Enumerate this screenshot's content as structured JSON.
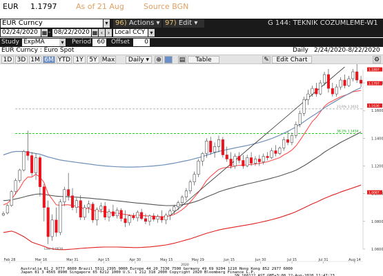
{
  "header": {
    "ticker": "EUR",
    "last_price": "1.1797",
    "as_of": "As of 21 Aug",
    "source": "Source BGN"
  },
  "toolbar": {
    "security": "EUR Curncy",
    "actions_num": "96)",
    "actions_label": "Actions",
    "edit_num": "97)",
    "edit_label": "Edit",
    "function_title": "G 144: TEKNIK COZUMLEME-W1"
  },
  "date_range": {
    "start": "02/24/2020",
    "end": "08/22/2020",
    "currency": "Local CCY"
  },
  "study": {
    "label": "Study",
    "name": "ExpMA",
    "period_label": "Period",
    "period": "60",
    "offset_label": "Offset",
    "offset": "0"
  },
  "subheader": {
    "description": "EUR Curncy : Euro Spot",
    "frequency": "Daily",
    "range": "2/24/2020-8/22/2020"
  },
  "periods": [
    "1D",
    "3D",
    "1M",
    "6M",
    "YTD",
    "1Y",
    "5Y",
    "Max"
  ],
  "active_period": "6M",
  "frequency_select": "Daily",
  "buttons": {
    "table": "Table",
    "edit_chart": "Edit Chart"
  },
  "footer": {
    "line1": "Australia 61 2 9777 8600 Brazil 5511 2395 9000 Europe 44 20 7330 7500 Germany 49 69 9204 1210 Hong Kong 852 2977 6000",
    "line2": "Japan 81 3 4565 8900        Singapore 65 6212 1000       U.S. 1 212 318 2000          Copyright 2020 Bloomberg Finance L.P.",
    "line3": "SN 168122 AST  GMT+3:00 22-Aug-2020 11:47:23"
  },
  "colors": {
    "up_candle": "#ffffff",
    "down_candle": "#e8141e",
    "ema_short": "#ff4d4d",
    "ema_mid": "#555555",
    "ema_long": "#6f8fb8",
    "bb_lower": "#e22020",
    "green_line": "#00cc00",
    "gray_line": "#aaaaaa",
    "last_price_badge": "#e22020"
  },
  "chart_data": {
    "type": "candlestick",
    "title": "",
    "ylim": [
      1.06,
      1.1895
    ],
    "y_ticks": [
      "1.1800",
      "1.1600",
      "1.1400",
      "1.1200",
      "1.1000",
      "1.0800",
      "1.0600"
    ],
    "x_ticks": [
      "Feb 28",
      "Mar 16",
      "Mar 31",
      "Apr 15",
      "Apr 30",
      "May 15",
      "May 29",
      "Jun 15",
      "Jun 30",
      "Jul 15",
      "Jul 31",
      "Aug 14"
    ],
    "x_year": "2020",
    "last_value_label": "1.1797",
    "level_labels": [
      {
        "text": "1.1897",
        "value": 1.1897
      },
      {
        "text": "1.1636",
        "value": 1.1636
      },
      {
        "text": "1.0087",
        "value": 1.0087
      }
    ],
    "annotations": {
      "high_label": "Hi: 1.1966",
      "low_label": "Low: 1.0636",
      "fib_label_1": "23.6% 1.1612",
      "fib_label_2": "38.2% 1.1434"
    },
    "hlines": [
      {
        "name": "fib_1",
        "value": 1.1612
      },
      {
        "name": "fib_2",
        "value": 1.1434
      }
    ],
    "candles": [
      {
        "o": 1.0845,
        "h": 1.0872,
        "l": 1.0838,
        "c": 1.0857
      },
      {
        "o": 1.086,
        "h": 1.0925,
        "l": 1.085,
        "c": 1.0915
      },
      {
        "o": 1.0915,
        "h": 1.1025,
        "l": 1.0905,
        "c": 1.1015
      },
      {
        "o": 1.1015,
        "h": 1.111,
        "l": 1.0995,
        "c": 1.1095
      },
      {
        "o": 1.1095,
        "h": 1.118,
        "l": 1.108,
        "c": 1.117
      },
      {
        "o": 1.117,
        "h": 1.1315,
        "l": 1.116,
        "c": 1.1305
      },
      {
        "o": 1.1305,
        "h": 1.1455,
        "l": 1.124,
        "c": 1.1275
      },
      {
        "o": 1.1275,
        "h": 1.13,
        "l": 1.1125,
        "c": 1.115
      },
      {
        "o": 1.115,
        "h": 1.129,
        "l": 1.11,
        "c": 1.126
      },
      {
        "o": 1.126,
        "h": 1.1275,
        "l": 1.098,
        "c": 1.105
      },
      {
        "o": 1.105,
        "h": 1.107,
        "l": 1.08,
        "c": 1.09
      },
      {
        "o": 1.09,
        "h": 1.095,
        "l": 1.0636,
        "c": 1.069
      },
      {
        "o": 1.069,
        "h": 1.085,
        "l": 1.066,
        "c": 1.081
      },
      {
        "o": 1.081,
        "h": 1.09,
        "l": 1.069,
        "c": 1.072
      },
      {
        "o": 1.072,
        "h": 1.096,
        "l": 1.07,
        "c": 1.094
      },
      {
        "o": 1.094,
        "h": 1.105,
        "l": 1.091,
        "c": 1.103
      },
      {
        "o": 1.103,
        "h": 1.115,
        "l": 1.095,
        "c": 1.0985
      },
      {
        "o": 1.0985,
        "h": 1.104,
        "l": 1.088,
        "c": 1.09
      },
      {
        "o": 1.09,
        "h": 1.097,
        "l": 1.086,
        "c": 1.095
      },
      {
        "o": 1.095,
        "h": 1.099,
        "l": 1.081,
        "c": 1.083
      },
      {
        "o": 1.083,
        "h": 1.092,
        "l": 1.081,
        "c": 1.09
      },
      {
        "o": 1.09,
        "h": 1.095,
        "l": 1.086,
        "c": 1.0925
      },
      {
        "o": 1.0925,
        "h": 1.094,
        "l": 1.079,
        "c": 1.081
      },
      {
        "o": 1.081,
        "h": 1.09,
        "l": 1.077,
        "c": 1.0885
      },
      {
        "o": 1.0885,
        "h": 1.0935,
        "l": 1.086,
        "c": 1.091
      },
      {
        "o": 1.091,
        "h": 1.094,
        "l": 1.081,
        "c": 1.083
      },
      {
        "o": 1.083,
        "h": 1.089,
        "l": 1.08,
        "c": 1.087
      },
      {
        "o": 1.087,
        "h": 1.092,
        "l": 1.083,
        "c": 1.084
      },
      {
        "o": 1.084,
        "h": 1.09,
        "l": 1.082,
        "c": 1.088
      },
      {
        "o": 1.088,
        "h": 1.0895,
        "l": 1.08,
        "c": 1.082
      },
      {
        "o": 1.082,
        "h": 1.088,
        "l": 1.076,
        "c": 1.079
      },
      {
        "o": 1.079,
        "h": 1.085,
        "l": 1.077,
        "c": 1.084
      },
      {
        "o": 1.084,
        "h": 1.086,
        "l": 1.081,
        "c": 1.0825
      },
      {
        "o": 1.0825,
        "h": 1.088,
        "l": 1.08,
        "c": 1.0865
      },
      {
        "o": 1.0865,
        "h": 1.089,
        "l": 1.081,
        "c": 1.082
      },
      {
        "o": 1.082,
        "h": 1.0855,
        "l": 1.078,
        "c": 1.08
      },
      {
        "o": 1.08,
        "h": 1.085,
        "l": 1.077,
        "c": 1.084
      },
      {
        "o": 1.084,
        "h": 1.086,
        "l": 1.08,
        "c": 1.0815
      },
      {
        "o": 1.0815,
        "h": 1.085,
        "l": 1.079,
        "c": 1.0835
      },
      {
        "o": 1.0835,
        "h": 1.088,
        "l": 1.079,
        "c": 1.081
      },
      {
        "o": 1.081,
        "h": 1.086,
        "l": 1.078,
        "c": 1.0845
      },
      {
        "o": 1.0845,
        "h": 1.089,
        "l": 1.081,
        "c": 1.0875
      },
      {
        "o": 1.0875,
        "h": 1.092,
        "l": 1.085,
        "c": 1.0905
      },
      {
        "o": 1.0905,
        "h": 1.095,
        "l": 1.088,
        "c": 1.0935
      },
      {
        "o": 1.0935,
        "h": 1.099,
        "l": 1.091,
        "c": 1.0975
      },
      {
        "o": 1.0975,
        "h": 1.104,
        "l": 1.095,
        "c": 1.102
      },
      {
        "o": 1.102,
        "h": 1.11,
        "l": 1.1,
        "c": 1.1085
      },
      {
        "o": 1.1085,
        "h": 1.116,
        "l": 1.106,
        "c": 1.114
      },
      {
        "o": 1.114,
        "h": 1.125,
        "l": 1.112,
        "c": 1.1235
      },
      {
        "o": 1.1235,
        "h": 1.13,
        "l": 1.12,
        "c": 1.129
      },
      {
        "o": 1.129,
        "h": 1.14,
        "l": 1.126,
        "c": 1.138
      },
      {
        "o": 1.138,
        "h": 1.141,
        "l": 1.128,
        "c": 1.13
      },
      {
        "o": 1.13,
        "h": 1.137,
        "l": 1.126,
        "c": 1.134
      },
      {
        "o": 1.134,
        "h": 1.142,
        "l": 1.13,
        "c": 1.139
      },
      {
        "o": 1.139,
        "h": 1.141,
        "l": 1.126,
        "c": 1.128
      },
      {
        "o": 1.128,
        "h": 1.134,
        "l": 1.123,
        "c": 1.125
      },
      {
        "o": 1.125,
        "h": 1.13,
        "l": 1.118,
        "c": 1.12
      },
      {
        "o": 1.12,
        "h": 1.129,
        "l": 1.118,
        "c": 1.127
      },
      {
        "o": 1.127,
        "h": 1.13,
        "l": 1.122,
        "c": 1.124
      },
      {
        "o": 1.124,
        "h": 1.128,
        "l": 1.118,
        "c": 1.12
      },
      {
        "o": 1.12,
        "h": 1.128,
        "l": 1.119,
        "c": 1.126
      },
      {
        "o": 1.126,
        "h": 1.13,
        "l": 1.12,
        "c": 1.122
      },
      {
        "o": 1.122,
        "h": 1.127,
        "l": 1.12,
        "c": 1.125
      },
      {
        "o": 1.125,
        "h": 1.128,
        "l": 1.12,
        "c": 1.123
      },
      {
        "o": 1.123,
        "h": 1.129,
        "l": 1.121,
        "c": 1.127
      },
      {
        "o": 1.127,
        "h": 1.13,
        "l": 1.124,
        "c": 1.126
      },
      {
        "o": 1.126,
        "h": 1.133,
        "l": 1.125,
        "c": 1.131
      },
      {
        "o": 1.131,
        "h": 1.135,
        "l": 1.127,
        "c": 1.129
      },
      {
        "o": 1.129,
        "h": 1.134,
        "l": 1.128,
        "c": 1.133
      },
      {
        "o": 1.133,
        "h": 1.141,
        "l": 1.131,
        "c": 1.139
      },
      {
        "o": 1.139,
        "h": 1.145,
        "l": 1.135,
        "c": 1.137
      },
      {
        "o": 1.137,
        "h": 1.144,
        "l": 1.135,
        "c": 1.142
      },
      {
        "o": 1.142,
        "h": 1.152,
        "l": 1.14,
        "c": 1.15
      },
      {
        "o": 1.15,
        "h": 1.16,
        "l": 1.148,
        "c": 1.158
      },
      {
        "o": 1.158,
        "h": 1.17,
        "l": 1.156,
        "c": 1.168
      },
      {
        "o": 1.168,
        "h": 1.175,
        "l": 1.164,
        "c": 1.172
      },
      {
        "o": 1.172,
        "h": 1.178,
        "l": 1.17,
        "c": 1.176
      },
      {
        "o": 1.176,
        "h": 1.18,
        "l": 1.17,
        "c": 1.172
      },
      {
        "o": 1.172,
        "h": 1.182,
        "l": 1.171,
        "c": 1.18
      },
      {
        "o": 1.18,
        "h": 1.188,
        "l": 1.178,
        "c": 1.186
      },
      {
        "o": 1.186,
        "h": 1.19,
        "l": 1.173,
        "c": 1.176
      },
      {
        "o": 1.176,
        "h": 1.18,
        "l": 1.17,
        "c": 1.172
      },
      {
        "o": 1.172,
        "h": 1.179,
        "l": 1.17,
        "c": 1.177
      },
      {
        "o": 1.177,
        "h": 1.184,
        "l": 1.175,
        "c": 1.182
      },
      {
        "o": 1.182,
        "h": 1.186,
        "l": 1.176,
        "c": 1.178
      },
      {
        "o": 1.178,
        "h": 1.185,
        "l": 1.177,
        "c": 1.183
      },
      {
        "o": 1.183,
        "h": 1.19,
        "l": 1.181,
        "c": 1.188
      },
      {
        "o": 1.188,
        "h": 1.1966,
        "l": 1.18,
        "c": 1.182
      },
      {
        "o": 1.182,
        "h": 1.185,
        "l": 1.177,
        "c": 1.1797
      }
    ],
    "series": [
      {
        "name": "",
        "role": "ema_short",
        "values": [
          1.092,
          1.093,
          1.096,
          1.1,
          1.104,
          1.109,
          1.112,
          1.112,
          1.114,
          1.112,
          1.108,
          1.1,
          1.096,
          1.092,
          1.0915,
          1.092,
          1.092,
          1.0915,
          1.091,
          1.09,
          1.089,
          1.0895,
          1.088,
          1.0875,
          1.0875,
          1.0868,
          1.0865,
          1.086,
          1.086,
          1.0855,
          1.085,
          1.0845,
          1.0842,
          1.0845,
          1.0843,
          1.084,
          1.0838,
          1.0835,
          1.0835,
          1.0833,
          1.0835,
          1.084,
          1.085,
          1.0865,
          1.0885,
          1.091,
          1.094,
          1.0975,
          1.101,
          1.105,
          1.1095,
          1.1125,
          1.115,
          1.1175,
          1.1185,
          1.119,
          1.119,
          1.12,
          1.1205,
          1.1205,
          1.121,
          1.121,
          1.1215,
          1.1218,
          1.1225,
          1.123,
          1.124,
          1.125,
          1.126,
          1.128,
          1.1295,
          1.1315,
          1.1345,
          1.1385,
          1.143,
          1.1475,
          1.152,
          1.155,
          1.159,
          1.163,
          1.1655,
          1.167,
          1.1685,
          1.17,
          1.171,
          1.172,
          1.1735,
          1.174,
          1.1745
        ]
      },
      {
        "name": "",
        "role": "ema_mid",
        "values": [
          1.095,
          1.0952,
          1.0956,
          1.0962,
          1.0968,
          1.0976,
          1.0984,
          1.099,
          1.0996,
          1.0998,
          1.0996,
          1.099,
          1.0986,
          1.0982,
          1.098,
          1.0979,
          1.0978,
          1.0976,
          1.0975,
          1.0972,
          1.097,
          1.0968,
          1.0965,
          1.0962,
          1.096,
          1.0957,
          1.0954,
          1.0951,
          1.0948,
          1.0945,
          1.0942,
          1.0938,
          1.0935,
          1.0932,
          1.093,
          1.0927,
          1.0924,
          1.0921,
          1.0918,
          1.0916,
          1.0914,
          1.0914,
          1.0915,
          1.0917,
          1.092,
          1.0925,
          1.0932,
          1.094,
          1.095,
          1.0962,
          1.0976,
          1.0988,
          1.1,
          1.1013,
          1.1023,
          1.1032,
          1.104,
          1.1048,
          1.1056,
          1.1062,
          1.107,
          1.1076,
          1.1083,
          1.109,
          1.1097,
          1.1104,
          1.1112,
          1.112,
          1.1128,
          1.1138,
          1.1148,
          1.1158,
          1.117,
          1.1185,
          1.1202,
          1.122,
          1.124,
          1.1258,
          1.1278,
          1.13,
          1.1318,
          1.1335,
          1.1352,
          1.137,
          1.1385,
          1.14,
          1.1415,
          1.143,
          1.1445
        ]
      },
      {
        "name": "",
        "role": "ema_long",
        "values": [
          1.128,
          1.129,
          1.13,
          1.1305,
          1.1305,
          1.1305,
          1.13,
          1.1295,
          1.129,
          1.1285,
          1.1275,
          1.1265,
          1.1258,
          1.125,
          1.1243,
          1.1238,
          1.1234,
          1.123,
          1.1226,
          1.1222,
          1.1218,
          1.1214,
          1.121,
          1.1206,
          1.1203,
          1.12,
          1.1198,
          1.1196,
          1.1194,
          1.1193,
          1.1192,
          1.1192,
          1.1192,
          1.1193,
          1.1194,
          1.1196,
          1.1198,
          1.12,
          1.1203,
          1.1206,
          1.121,
          1.1215,
          1.122,
          1.1226,
          1.1232,
          1.1238,
          1.1244,
          1.1252,
          1.126,
          1.1268,
          1.1278,
          1.1288,
          1.1296,
          1.1305,
          1.1312,
          1.1318,
          1.1324,
          1.133,
          1.1336,
          1.1342,
          1.1348,
          1.1355,
          1.1362,
          1.137,
          1.1378,
          1.1388,
          1.1398,
          1.141,
          1.1422,
          1.1436,
          1.145,
          1.1466,
          1.1482,
          1.15,
          1.152,
          1.154,
          1.156,
          1.1578,
          1.1598,
          1.162,
          1.1638,
          1.1655,
          1.1672,
          1.169,
          1.1706,
          1.1722,
          1.1738,
          1.1752,
          1.1765
        ]
      },
      {
        "name": "",
        "role": "bb_lower",
        "values": [
          1.072,
          1.0725,
          1.073,
          1.072,
          1.0705,
          1.069,
          1.067,
          1.065,
          1.064,
          1.063,
          1.062,
          1.0608,
          1.0602,
          1.0598,
          1.0596,
          1.0596,
          1.0598,
          1.06,
          1.0602,
          1.0605,
          1.0607,
          1.0609,
          1.0611,
          1.0613,
          1.0614,
          1.0615,
          1.0615,
          1.0615,
          1.0615,
          1.0614,
          1.0613,
          1.0612,
          1.0611,
          1.0611,
          1.0612,
          1.0614,
          1.0616,
          1.0619,
          1.0622,
          1.0626,
          1.063,
          1.0636,
          1.0642,
          1.065,
          1.0658,
          1.0666,
          1.0674,
          1.0684,
          1.0694,
          1.0704,
          1.0714,
          1.0722,
          1.073,
          1.0738,
          1.0744,
          1.075,
          1.0755,
          1.076,
          1.0765,
          1.077,
          1.0775,
          1.078,
          1.0786,
          1.0792,
          1.0798,
          1.0805,
          1.0812,
          1.082,
          1.0828,
          1.0838,
          1.0848,
          1.0858,
          1.087,
          1.0884,
          1.0898,
          1.0912,
          1.0926,
          1.0938,
          1.0952,
          1.0966,
          1.0978,
          1.099,
          1.1,
          1.1012,
          1.1022,
          1.1032,
          1.1042,
          1.1052,
          1.1062
        ]
      },
      {
        "name": "",
        "role": "trendline",
        "values": [
          null,
          null,
          null,
          null,
          null,
          null,
          null,
          null,
          null,
          null,
          null,
          null,
          null,
          null,
          null,
          null,
          null,
          null,
          null,
          null,
          null,
          null,
          null,
          null,
          null,
          null,
          null,
          null,
          null,
          null,
          null,
          null,
          null,
          null,
          null,
          null,
          null,
          null,
          null,
          null,
          null,
          1.084,
          1.0865,
          1.089,
          1.0915,
          1.094,
          1.0965,
          1.099,
          1.1015,
          1.104,
          1.1065,
          1.109,
          1.1115,
          1.114,
          1.1165,
          1.119,
          1.1215,
          1.124,
          1.1265,
          1.129,
          1.1315,
          1.134,
          1.1365,
          1.139,
          1.1415,
          1.144,
          1.1465,
          1.149,
          1.1515,
          1.154,
          1.1565,
          1.159,
          1.1615,
          1.164,
          1.1665,
          1.169,
          1.1715,
          1.174,
          1.1765,
          1.179,
          1.1815,
          1.184,
          1.1865,
          1.189,
          1.1915,
          null,
          null,
          null,
          null
        ]
      }
    ]
  }
}
